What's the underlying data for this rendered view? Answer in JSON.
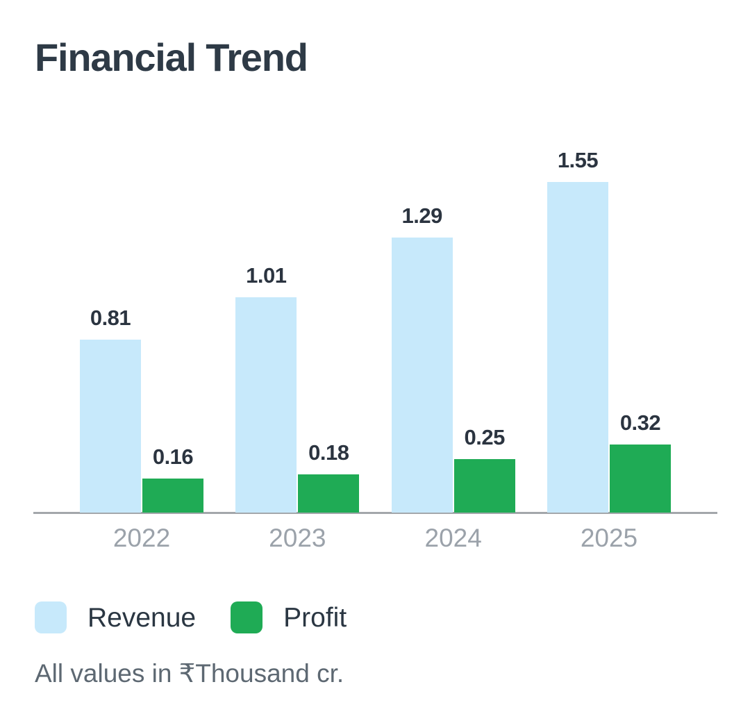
{
  "title": "Financial Trend",
  "chart_data": {
    "type": "bar",
    "title": "Financial Trend",
    "categories": [
      "2022",
      "2023",
      "2024",
      "2025"
    ],
    "series": [
      {
        "name": "Revenue",
        "color": "#c7e9fb",
        "values": [
          0.81,
          1.01,
          1.29,
          1.55
        ]
      },
      {
        "name": "Profit",
        "color": "#1fab55",
        "values": [
          0.16,
          0.18,
          0.25,
          0.32
        ]
      }
    ],
    "value_label_decimals": 2,
    "xlabel": "",
    "ylabel": "",
    "ylim": [
      0,
      1.75
    ],
    "grid": false,
    "y_axis_visible": false,
    "legend_position": "bottom-left",
    "footnote": "All values in ₹Thousand cr."
  }
}
